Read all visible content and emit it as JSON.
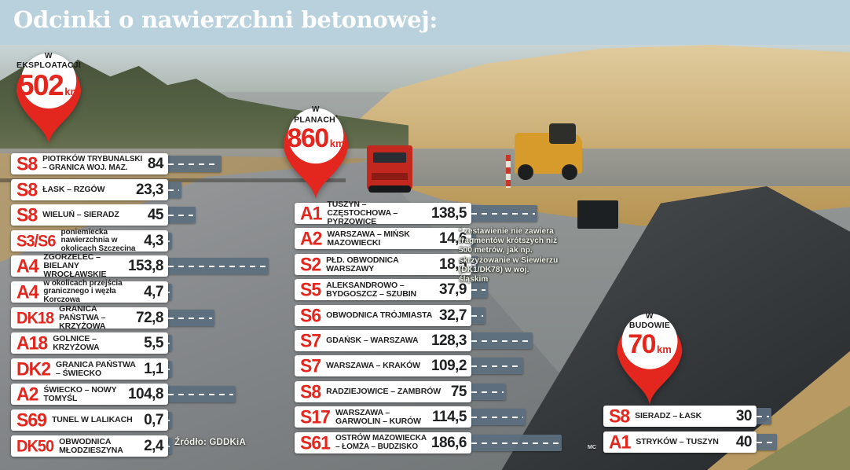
{
  "title": "Odcinki o nawierzchni betonowej:",
  "source": "Źródło: GDDKiA",
  "credit": "MC",
  "footnote": "* zestawienie nie zawiera fragmentów krótszych niż 500 metrów, jak np. skrzyżowanie w Siewierzu (DK1/DK78) w woj. śląskim",
  "colors": {
    "accent_red": "#e3271e",
    "bar_slate": "#5b6e7e",
    "header_blue": "#b8d1dc"
  },
  "balloons": [
    {
      "prefix": "W",
      "name": "EKSPLOATACJI",
      "sup": "",
      "value": "502",
      "unit": "km"
    },
    {
      "prefix": "W",
      "name": "PLANACH",
      "sup": "*",
      "value": "860",
      "unit": "km"
    },
    {
      "prefix": "W",
      "name": "BUDOWIE",
      "sup": "",
      "value": "70",
      "unit": "km"
    }
  ],
  "chart_data": {
    "type": "bar",
    "title": "Odcinki o nawierzchni betonowej:",
    "unit": "km",
    "groups": [
      {
        "label": "W EKSPLOATACJI",
        "total_km": 502,
        "rows": [
          {
            "road": "S8",
            "route": "PIOTRKÓW TRYBUNALSKI – GRANICA WOJ. MAZ.",
            "km": "84",
            "km_val": 84
          },
          {
            "road": "S8",
            "route": "ŁASK – RZGÓW",
            "km": "23,3",
            "km_val": 23.3
          },
          {
            "road": "S8",
            "route": "WIELUŃ – SIERADZ",
            "km": "45",
            "km_val": 45
          },
          {
            "road": "S3/S6",
            "route": "poniemiecka nawierzchnia w okolicach Szczecina",
            "km": "4,3",
            "km_val": 4.3
          },
          {
            "road": "A4",
            "route": "ZGORZELEC – BIELANY WROCŁAWSKIE",
            "km": "153,8",
            "km_val": 153.8
          },
          {
            "road": "A4",
            "route": "w okolicach przejścia granicznego i węzła Korczowa",
            "km": "4,7",
            "km_val": 4.7
          },
          {
            "road": "DK18",
            "route": "GRANICA PAŃSTWA – KRZYŻOWA",
            "km": "72,8",
            "km_val": 72.8
          },
          {
            "road": "A18",
            "route": "GOLNICE – KRZYŻOWA",
            "km": "5,5",
            "km_val": 5.5
          },
          {
            "road": "DK2",
            "route": "GRANICA PAŃSTWA – ŚWIECKO",
            "km": "1,1",
            "km_val": 1.1
          },
          {
            "road": "A2",
            "route": "ŚWIECKO – NOWY TOMYŚL",
            "km": "104,8",
            "km_val": 104.8
          },
          {
            "road": "S69",
            "route": "TUNEL W LALIKACH",
            "km": "0,7",
            "km_val": 0.7
          },
          {
            "road": "DK50",
            "route": "OBWODNICA MŁODZIESZYNA",
            "km": "2,4",
            "km_val": 2.4
          }
        ]
      },
      {
        "label": "W PLANACH*",
        "total_km": 860,
        "rows": [
          {
            "road": "A1",
            "route": "TUSZYN – CZĘSTOCHOWA – PYRZOWICE",
            "km": "138,5",
            "km_val": 138.5
          },
          {
            "road": "A2",
            "route": "WARSZAWA – MIŃSK MAZOWIECKI",
            "km": "14,6",
            "km_val": 14.6
          },
          {
            "road": "S2",
            "route": "PŁD. OBWODNICA WARSZAWY",
            "km": "18,5",
            "km_val": 18.5
          },
          {
            "road": "S5",
            "route": "ALEKSANDROWO – BYDGOSZCZ – SZUBIN",
            "km": "37,9",
            "km_val": 37.9
          },
          {
            "road": "S6",
            "route": "OBWODNICA TRÓJMIASTA",
            "km": "32,7",
            "km_val": 32.7
          },
          {
            "road": "S7",
            "route": "GDAŃSK – WARSZAWA",
            "km": "128,3",
            "km_val": 128.3
          },
          {
            "road": "S7",
            "route": "WARSZAWA – KRAKÓW",
            "km": "109,2",
            "km_val": 109.2
          },
          {
            "road": "S8",
            "route": "RADZIEJOWICE – ZAMBRÓW",
            "km": "75",
            "km_val": 75
          },
          {
            "road": "S17",
            "route": "WARSZAWA – GARWOLIN – KURÓW",
            "km": "114,5",
            "km_val": 114.5
          },
          {
            "road": "S61",
            "route": "OSTRÓW MAZOWIECKA – ŁOMŻA – BUDZISKO",
            "km": "186,6",
            "km_val": 186.6
          }
        ]
      },
      {
        "label": "W BUDOWIE",
        "total_km": 70,
        "rows": [
          {
            "road": "S8",
            "route": "SIERADZ – ŁASK",
            "km": "30",
            "km_val": 30
          },
          {
            "road": "A1",
            "route": "STRYKÓW – TUSZYN",
            "km": "40",
            "km_val": 40
          }
        ]
      }
    ]
  }
}
